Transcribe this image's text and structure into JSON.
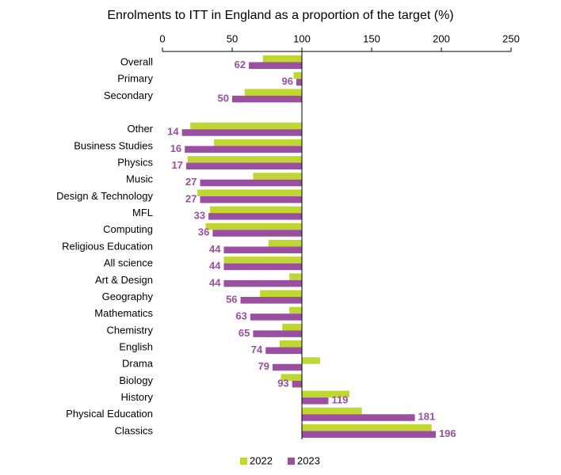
{
  "chart_data": {
    "type": "bar",
    "orientation": "horizontal",
    "title": "Enrolments to ITT in England as a proportion of the target (%)",
    "categories": [
      "Overall",
      "Primary",
      "Secondary",
      null,
      "Other",
      "Business Studies",
      "Physics",
      "Music",
      "Design & Technology",
      "MFL",
      "Computing",
      "Religious Education",
      "All science",
      "Art & Design",
      "Geography",
      "Mathematics",
      "Chemistry",
      "English",
      "Drama",
      "Biology",
      "History",
      "Physical Education",
      "Classics"
    ],
    "series": [
      {
        "name": "2022",
        "color": "#bfd730",
        "values": [
          72,
          94,
          59,
          null,
          20,
          37,
          18,
          65,
          25,
          34,
          31,
          76,
          44,
          91,
          70,
          91,
          86,
          84,
          113,
          85,
          134,
          143,
          193
        ]
      },
      {
        "name": "2023",
        "color": "#9b4fa0",
        "values": [
          62,
          96,
          50,
          null,
          14,
          16,
          17,
          27,
          27,
          33,
          36,
          44,
          44,
          44,
          56,
          63,
          65,
          74,
          79,
          93,
          119,
          181,
          196
        ],
        "value_labels_shown": true
      }
    ],
    "baseline": 100,
    "xlim": [
      0,
      250
    ],
    "xticks": [
      0,
      50,
      100,
      150,
      200,
      250
    ],
    "legend": "bottom"
  }
}
